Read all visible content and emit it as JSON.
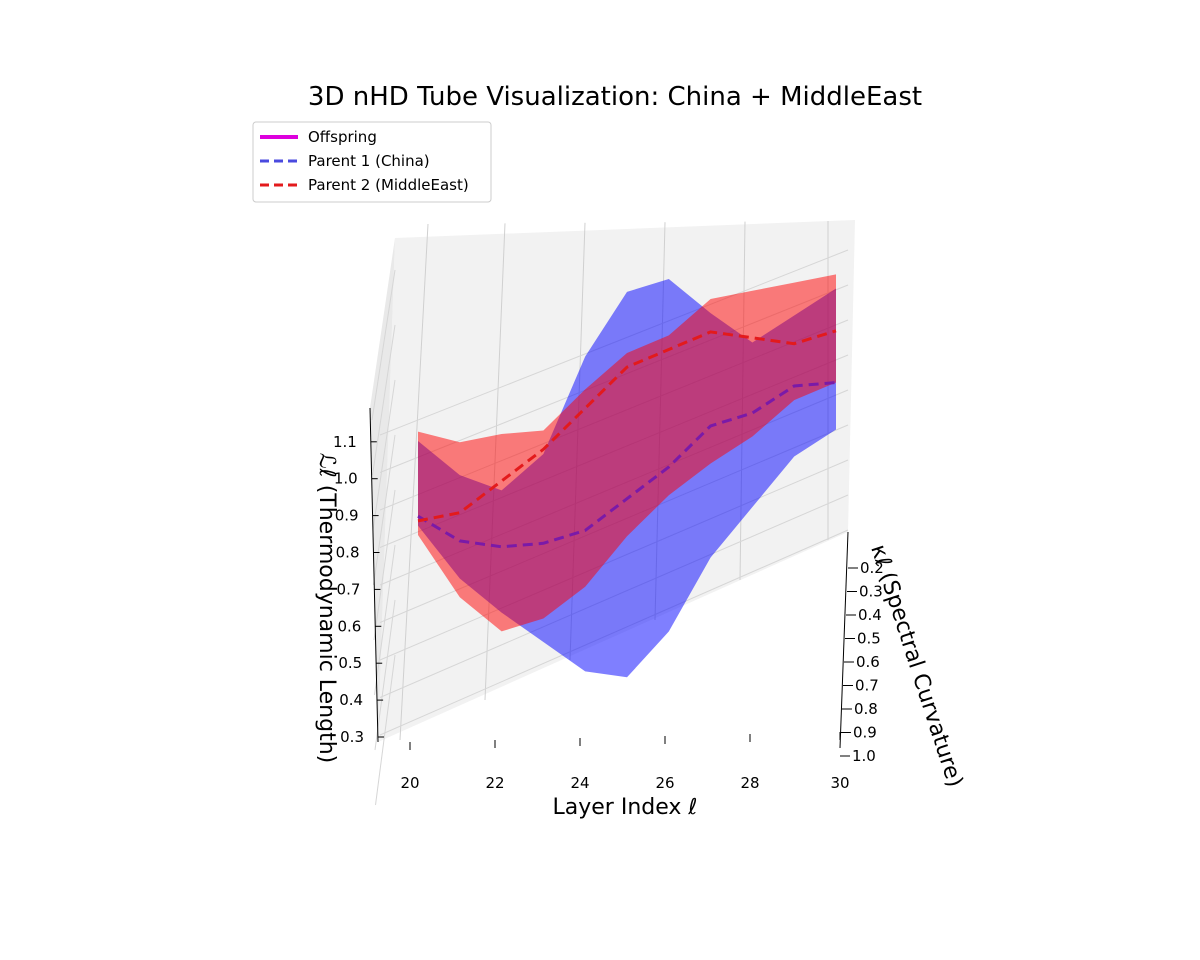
{
  "chart_data": {
    "type": "3d-tube",
    "title": "3D nHD Tube Visualization: China + MiddleEast",
    "xlabel": "Layer Index ℓ",
    "ylabel": "ℒℓ (Thermodynamic Length)",
    "zlabel": "κℓ (Spectral Curvature)",
    "xticks": [
      "20",
      "22",
      "24",
      "26",
      "28",
      "30"
    ],
    "yticks": [
      "0.3",
      "0.4",
      "0.5",
      "0.6",
      "0.7",
      "0.8",
      "0.9",
      "1.0",
      "1.1"
    ],
    "zticks": [
      "0.2",
      "0.3",
      "0.4",
      "0.5",
      "0.6",
      "0.7",
      "0.8",
      "0.9",
      "1.0"
    ],
    "xlim": [
      20,
      30
    ],
    "legend_position": "top-left",
    "grid": true,
    "legend": [
      {
        "label": "Offspring",
        "color": "#dd00dd",
        "style": "solid"
      },
      {
        "label": "Parent 1 (China)",
        "color": "#4a4adf",
        "style": "dashed"
      },
      {
        "label": "Parent 2 (MiddleEast)",
        "color": "#e31a1c",
        "style": "dashed"
      }
    ],
    "series": [
      {
        "name": "Parent 1 (China)",
        "color": "#4a4adf",
        "fill": "#0000ff",
        "x": [
          20,
          21,
          22,
          23,
          24,
          25,
          26,
          27,
          28,
          29,
          30
        ],
        "center": [
          0.84,
          0.78,
          0.76,
          0.76,
          0.78,
          0.84,
          0.9,
          0.98,
          1.0,
          1.05,
          1.05
        ],
        "upper": [
          1.0,
          0.92,
          0.88,
          0.95,
          1.15,
          1.28,
          1.3,
          1.22,
          1.15,
          1.2,
          1.25
        ],
        "lower": [
          0.82,
          0.7,
          0.62,
          0.55,
          0.48,
          0.46,
          0.55,
          0.7,
          0.8,
          0.9,
          0.95
        ]
      },
      {
        "name": "Parent 2 (MiddleEast)",
        "color": "#e31a1c",
        "fill": "#ff0000",
        "x": [
          20,
          21,
          22,
          23,
          24,
          25,
          26,
          27,
          28,
          29,
          30
        ],
        "center": [
          0.83,
          0.84,
          0.9,
          0.96,
          1.04,
          1.12,
          1.15,
          1.18,
          1.16,
          1.14,
          1.16
        ],
        "upper": [
          1.02,
          0.99,
          1.0,
          1.0,
          1.08,
          1.15,
          1.18,
          1.25,
          1.26,
          1.27,
          1.28
        ],
        "lower": [
          0.8,
          0.66,
          0.58,
          0.6,
          0.66,
          0.76,
          0.84,
          0.9,
          0.95,
          1.02,
          1.05
        ]
      }
    ]
  }
}
